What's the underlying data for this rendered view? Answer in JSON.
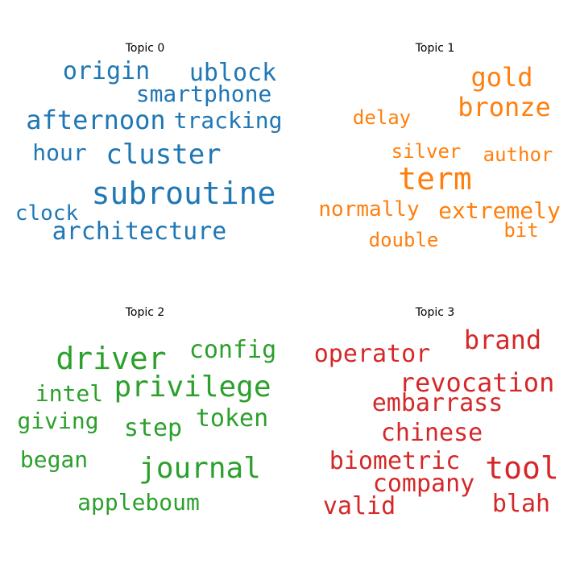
{
  "chart_data": [
    {
      "type": "wordcloud",
      "title": "Topic 0",
      "color": "#1f77b4",
      "words": [
        {
          "text": "subroutine",
          "weight": 1.0
        },
        {
          "text": "cluster",
          "weight": 0.9
        },
        {
          "text": "afternoon",
          "weight": 0.85
        },
        {
          "text": "architecture",
          "weight": 0.8
        },
        {
          "text": "origin",
          "weight": 0.8
        },
        {
          "text": "ublock",
          "weight": 0.8
        },
        {
          "text": "hour",
          "weight": 0.75
        },
        {
          "text": "tracking",
          "weight": 0.72
        },
        {
          "text": "smartphone",
          "weight": 0.72
        },
        {
          "text": "clock",
          "weight": 0.68
        }
      ]
    },
    {
      "type": "wordcloud",
      "title": "Topic 1",
      "color": "#ff7f0e",
      "words": [
        {
          "text": "term",
          "weight": 1.0
        },
        {
          "text": "gold",
          "weight": 0.8
        },
        {
          "text": "bronze",
          "weight": 0.8
        },
        {
          "text": "extremely",
          "weight": 0.7
        },
        {
          "text": "normally",
          "weight": 0.65
        },
        {
          "text": "delay",
          "weight": 0.62
        },
        {
          "text": "silver",
          "weight": 0.62
        },
        {
          "text": "author",
          "weight": 0.62
        },
        {
          "text": "double",
          "weight": 0.6
        },
        {
          "text": "bit",
          "weight": 0.6
        }
      ]
    },
    {
      "type": "wordcloud",
      "title": "Topic 2",
      "color": "#2ca02c",
      "words": [
        {
          "text": "driver",
          "weight": 1.0
        },
        {
          "text": "privilege",
          "weight": 0.95
        },
        {
          "text": "journal",
          "weight": 0.95
        },
        {
          "text": "config",
          "weight": 0.8
        },
        {
          "text": "token",
          "weight": 0.8
        },
        {
          "text": "step",
          "weight": 0.8
        },
        {
          "text": "intel",
          "weight": 0.75
        },
        {
          "text": "giving",
          "weight": 0.75
        },
        {
          "text": "began",
          "weight": 0.75
        },
        {
          "text": "appleboum",
          "weight": 0.75
        }
      ]
    },
    {
      "type": "wordcloud",
      "title": "Topic 3",
      "color": "#d62728",
      "words": [
        {
          "text": "tool",
          "weight": 1.0
        },
        {
          "text": "revocation",
          "weight": 0.85
        },
        {
          "text": "brand",
          "weight": 0.85
        },
        {
          "text": "operator",
          "weight": 0.8
        },
        {
          "text": "embarrass",
          "weight": 0.8
        },
        {
          "text": "chinese",
          "weight": 0.8
        },
        {
          "text": "biometric",
          "weight": 0.8
        },
        {
          "text": "company",
          "weight": 0.8
        },
        {
          "text": "valid",
          "weight": 0.8
        },
        {
          "text": "blah",
          "weight": 0.8
        }
      ]
    }
  ]
}
